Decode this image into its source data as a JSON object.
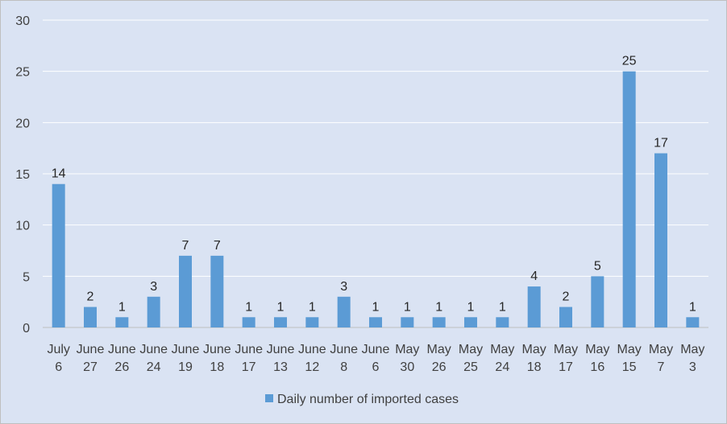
{
  "chart_data": {
    "type": "bar",
    "categories": [
      [
        "July",
        "6"
      ],
      [
        "June",
        "27"
      ],
      [
        "June",
        "26"
      ],
      [
        "June",
        "24"
      ],
      [
        "June",
        "19"
      ],
      [
        "June",
        "18"
      ],
      [
        "June",
        "17"
      ],
      [
        "June",
        "13"
      ],
      [
        "June",
        "12"
      ],
      [
        "June",
        "8"
      ],
      [
        "June",
        "6"
      ],
      [
        "May",
        "30"
      ],
      [
        "May",
        "26"
      ],
      [
        "May",
        "25"
      ],
      [
        "May",
        "24"
      ],
      [
        "May",
        "18"
      ],
      [
        "May",
        "17"
      ],
      [
        "May",
        "16"
      ],
      [
        "May",
        "15"
      ],
      [
        "May",
        "7"
      ],
      [
        "May",
        "3"
      ]
    ],
    "series": [
      {
        "name": "Daily number of imported cases",
        "color": "#5b9bd5",
        "values": [
          14,
          2,
          1,
          3,
          7,
          7,
          1,
          1,
          1,
          3,
          1,
          1,
          1,
          1,
          1,
          4,
          2,
          5,
          25,
          17,
          1
        ]
      }
    ],
    "ylim": [
      0,
      30
    ],
    "yticks": [
      0,
      5,
      10,
      15,
      20,
      25,
      30
    ],
    "grid": true,
    "legend_position": "bottom",
    "data_labels": true,
    "background_color": "#dae3f3",
    "gridline_color": "#ffffff"
  }
}
